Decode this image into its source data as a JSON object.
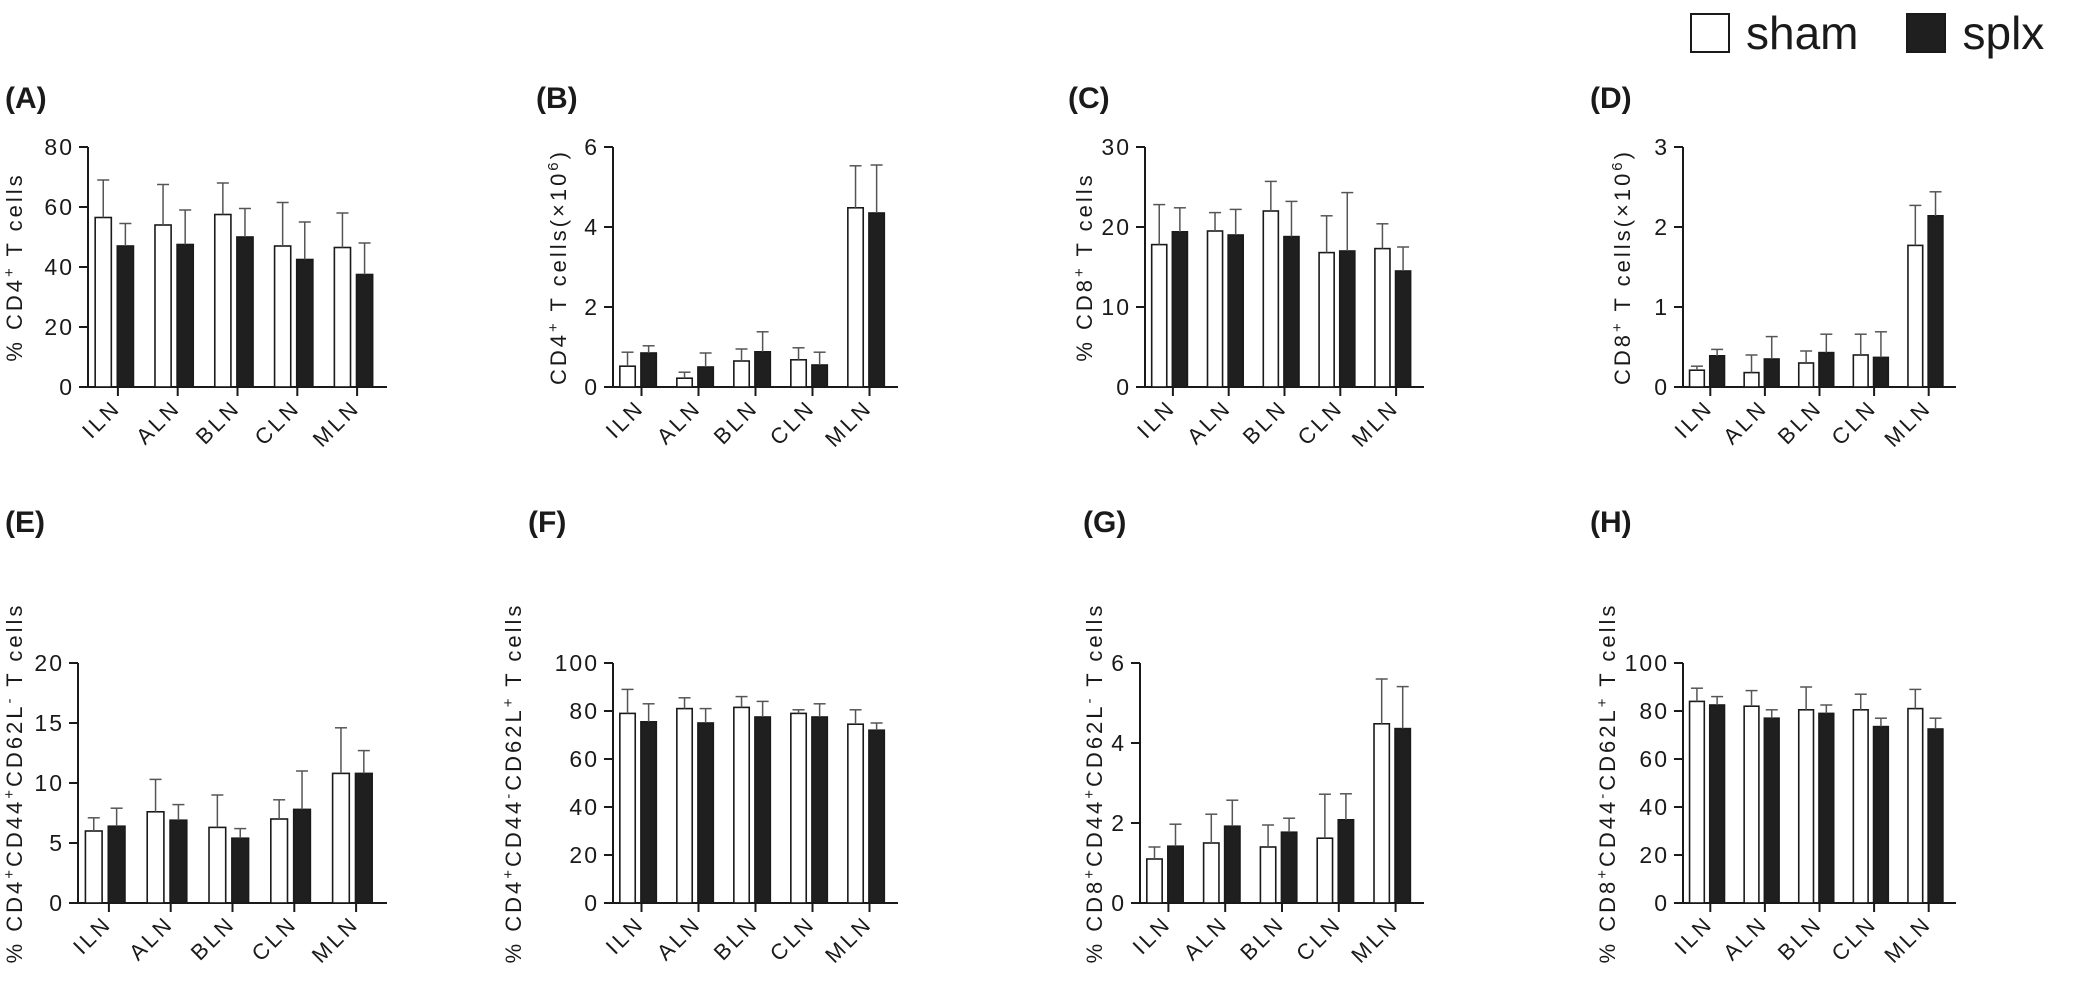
{
  "legend": {
    "items": [
      {
        "label": "sham",
        "color": "#ffffff"
      },
      {
        "label": "splx",
        "color": "#1f1f1f"
      }
    ]
  },
  "chart_data": [
    {
      "panel": "(A)",
      "type": "bar",
      "ylabel": "% CD4+ T cells",
      "ylabel_parts": [
        [
          "% CD4",
          ""
        ],
        [
          "+",
          "sup"
        ],
        [
          " T cells",
          ""
        ]
      ],
      "categories": [
        "ILN",
        "ALN",
        "BLN",
        "CLN",
        "MLN"
      ],
      "ylim": [
        0,
        80
      ],
      "yticks": [
        0,
        20,
        40,
        60,
        80
      ],
      "series": [
        {
          "name": "sham",
          "values": [
            56.5,
            54,
            57.5,
            47,
            46.5
          ],
          "errors": [
            12.5,
            13.5,
            10.5,
            14.5,
            11.5
          ]
        },
        {
          "name": "splx",
          "values": [
            47,
            47.5,
            50,
            42.5,
            37.5
          ],
          "errors": [
            7.5,
            11.5,
            9.5,
            12.5,
            10.5
          ]
        }
      ]
    },
    {
      "panel": "(B)",
      "type": "bar",
      "ylabel": "CD4+ T cells(×10^6)",
      "ylabel_parts": [
        [
          "CD4",
          ""
        ],
        [
          "+",
          "sup"
        ],
        [
          " T cells(×10",
          ""
        ],
        [
          "6",
          "sup"
        ],
        [
          ")",
          ""
        ]
      ],
      "categories": [
        "ILN",
        "ALN",
        "BLN",
        "CLN",
        "MLN"
      ],
      "ylim": [
        0,
        6
      ],
      "yticks": [
        0,
        2,
        4,
        6
      ],
      "series": [
        {
          "name": "sham",
          "values": [
            0.52,
            0.22,
            0.65,
            0.68,
            4.48
          ],
          "errors": [
            0.35,
            0.15,
            0.3,
            0.3,
            1.05
          ]
        },
        {
          "name": "splx",
          "values": [
            0.85,
            0.5,
            0.88,
            0.55,
            4.35
          ],
          "errors": [
            0.18,
            0.35,
            0.5,
            0.32,
            1.2
          ]
        }
      ]
    },
    {
      "panel": "(C)",
      "type": "bar",
      "ylabel": "% CD8+ T cells",
      "ylabel_parts": [
        [
          "% CD8",
          ""
        ],
        [
          "+",
          "sup"
        ],
        [
          " T cells",
          ""
        ]
      ],
      "categories": [
        "ILN",
        "ALN",
        "BLN",
        "CLN",
        "MLN"
      ],
      "ylim": [
        0,
        30
      ],
      "yticks": [
        0,
        10,
        20,
        30
      ],
      "series": [
        {
          "name": "sham",
          "values": [
            17.8,
            19.5,
            22,
            16.8,
            17.3
          ],
          "errors": [
            5,
            2.3,
            3.7,
            4.6,
            3.1
          ]
        },
        {
          "name": "splx",
          "values": [
            19.4,
            19,
            18.8,
            17,
            14.5
          ],
          "errors": [
            3,
            3.2,
            4.4,
            7.3,
            3
          ]
        }
      ]
    },
    {
      "panel": "(D)",
      "type": "bar",
      "ylabel": "CD8+ T cells(×10^6)",
      "ylabel_parts": [
        [
          "CD8",
          ""
        ],
        [
          "+",
          "sup"
        ],
        [
          " T cells(×10",
          ""
        ],
        [
          "6",
          "sup"
        ],
        [
          ")",
          ""
        ]
      ],
      "categories": [
        "ILN",
        "ALN",
        "BLN",
        "CLN",
        "MLN"
      ],
      "ylim": [
        0,
        3
      ],
      "yticks": [
        0,
        1,
        2,
        3
      ],
      "series": [
        {
          "name": "sham",
          "values": [
            0.21,
            0.18,
            0.3,
            0.4,
            1.77
          ],
          "errors": [
            0.05,
            0.22,
            0.15,
            0.26,
            0.5
          ]
        },
        {
          "name": "splx",
          "values": [
            0.39,
            0.35,
            0.43,
            0.37,
            2.14
          ],
          "errors": [
            0.08,
            0.28,
            0.23,
            0.32,
            0.3
          ]
        }
      ]
    },
    {
      "panel": "(E)",
      "type": "bar",
      "ylabel": "% CD4+CD44+CD62L- T cells",
      "ylabel_parts": [
        [
          "% CD4",
          ""
        ],
        [
          "+",
          "sup"
        ],
        [
          "CD44",
          ""
        ],
        [
          "+",
          "sup"
        ],
        [
          "CD62L",
          ""
        ],
        [
          "-",
          "sup"
        ],
        [
          " T cells",
          ""
        ]
      ],
      "categories": [
        "ILN",
        "ALN",
        "BLN",
        "CLN",
        "MLN"
      ],
      "ylim": [
        0,
        20
      ],
      "yticks": [
        0,
        5,
        10,
        15,
        20
      ],
      "series": [
        {
          "name": "sham",
          "values": [
            6,
            7.6,
            6.3,
            7,
            10.8
          ],
          "errors": [
            1.1,
            2.7,
            2.7,
            1.6,
            3.8
          ]
        },
        {
          "name": "splx",
          "values": [
            6.4,
            6.9,
            5.4,
            7.8,
            10.8
          ],
          "errors": [
            1.5,
            1.3,
            0.8,
            3.2,
            1.9
          ]
        }
      ]
    },
    {
      "panel": "(F)",
      "type": "bar",
      "ylabel": "% CD4+CD44-CD62L+ T cells",
      "ylabel_parts": [
        [
          "% CD4",
          ""
        ],
        [
          "+",
          "sup"
        ],
        [
          "CD44",
          ""
        ],
        [
          "-",
          "sup"
        ],
        [
          "CD62L",
          ""
        ],
        [
          "+",
          "sup"
        ],
        [
          " T cells",
          ""
        ]
      ],
      "categories": [
        "ILN",
        "ALN",
        "BLN",
        "CLN",
        "MLN"
      ],
      "ylim": [
        0,
        100
      ],
      "yticks": [
        0,
        20,
        40,
        60,
        80,
        100
      ],
      "series": [
        {
          "name": "sham",
          "values": [
            79,
            81,
            81.5,
            79,
            74.5
          ],
          "errors": [
            10,
            4.5,
            4.5,
            1.5,
            6
          ]
        },
        {
          "name": "splx",
          "values": [
            75.5,
            75,
            77.5,
            77.5,
            72
          ],
          "errors": [
            7.5,
            6,
            6.5,
            5.5,
            3
          ]
        }
      ]
    },
    {
      "panel": "(G)",
      "type": "bar",
      "ylabel": "% CD8+CD44+CD62L- T cells",
      "ylabel_parts": [
        [
          "% CD8",
          ""
        ],
        [
          "+",
          "sup"
        ],
        [
          "CD44",
          ""
        ],
        [
          "+",
          "sup"
        ],
        [
          "CD62L",
          ""
        ],
        [
          "-",
          "sup"
        ],
        [
          " T cells",
          ""
        ]
      ],
      "categories": [
        "ILN",
        "ALN",
        "BLN",
        "CLN",
        "MLN"
      ],
      "ylim": [
        0,
        6
      ],
      "yticks": [
        0,
        2,
        4,
        6
      ],
      "series": [
        {
          "name": "sham",
          "values": [
            1.1,
            1.5,
            1.4,
            1.62,
            4.48
          ],
          "errors": [
            0.3,
            0.72,
            0.55,
            1.1,
            1.12
          ]
        },
        {
          "name": "splx",
          "values": [
            1.42,
            1.92,
            1.77,
            2.08,
            4.36
          ],
          "errors": [
            0.55,
            0.65,
            0.35,
            0.65,
            1.05
          ]
        }
      ]
    },
    {
      "panel": "(H)",
      "type": "bar",
      "ylabel": "% CD8+CD44-CD62L+ T cells",
      "ylabel_parts": [
        [
          "% CD8",
          ""
        ],
        [
          "+",
          "sup"
        ],
        [
          "CD44",
          ""
        ],
        [
          "-",
          "sup"
        ],
        [
          "CD62L",
          ""
        ],
        [
          "+",
          "sup"
        ],
        [
          " T cells",
          ""
        ]
      ],
      "categories": [
        "ILN",
        "ALN",
        "BLN",
        "CLN",
        "MLN"
      ],
      "ylim": [
        0,
        100
      ],
      "yticks": [
        0,
        20,
        40,
        60,
        80,
        100
      ],
      "series": [
        {
          "name": "sham",
          "values": [
            84,
            82,
            80.5,
            80.5,
            81
          ],
          "errors": [
            5.5,
            6.5,
            9.5,
            6.5,
            8
          ]
        },
        {
          "name": "splx",
          "values": [
            82.5,
            77,
            79,
            73.5,
            72.5
          ],
          "errors": [
            3.5,
            3.5,
            3.5,
            3.5,
            4.5
          ]
        }
      ]
    }
  ]
}
